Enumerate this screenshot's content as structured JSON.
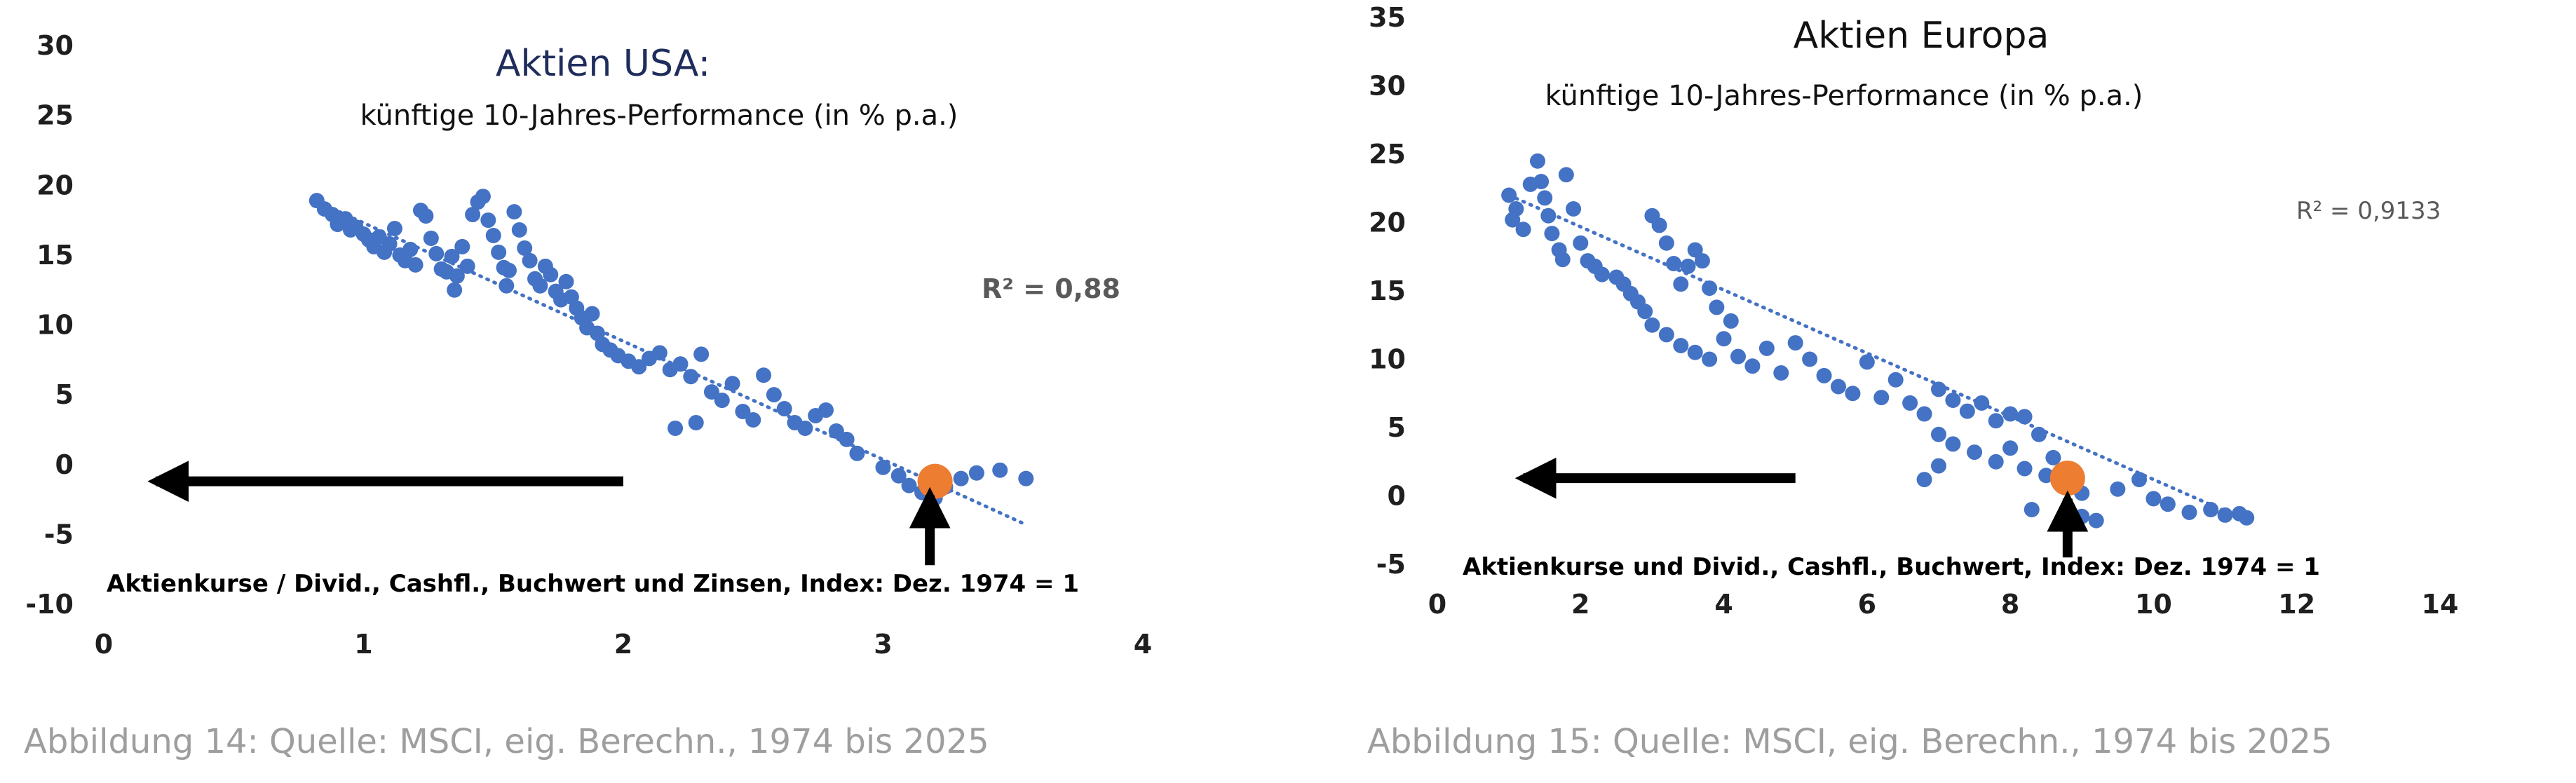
{
  "colors": {
    "points": "#4472C4",
    "trendline": "#4472C4",
    "highlight": "#ED7D31",
    "axis_text": "#1f1f1f",
    "title_usa": "#1f2d5c",
    "r2_usa": "#595959",
    "r2_europe": "#595959",
    "caption": "#9e9e9e",
    "arrow": "#000000"
  },
  "captions": {
    "left": "Abbildung 14: Quelle: MSCI, eig. Berechn., 1974 bis 2025",
    "right": "Abbildung 15: Quelle: MSCI, eig. Berechn., 1974 bis 2025"
  },
  "chart_data": [
    {
      "type": "scatter",
      "title": "Aktien USA:",
      "subtitle": "künftige 10-Jahres-Performance (in % p.a.)",
      "xlabel": "Aktienkurse / Divid., Cashfl., Buchwert und Zinsen, Index: Dez. 1974 = 1",
      "ylabel": "",
      "xlim": [
        0,
        4
      ],
      "ylim": [
        -10,
        30
      ],
      "xticks": [
        0,
        1,
        2,
        3,
        4
      ],
      "yticks": [
        -10,
        -5,
        0,
        5,
        10,
        15,
        20,
        25,
        30
      ],
      "grid": false,
      "r_squared": "R² = 0,88",
      "trendline": {
        "x": [
          0.8,
          3.55
        ],
        "y": [
          19.0,
          -4.3
        ]
      },
      "highlight": {
        "x": 3.2,
        "y": -1.2
      },
      "arrows": [
        {
          "direction": "left",
          "from": [
            2.0,
            -1.2
          ],
          "to": [
            0.2,
            -1.2
          ]
        },
        {
          "direction": "up",
          "from": [
            3.18,
            -7.2
          ],
          "to": [
            3.18,
            -2.2
          ]
        }
      ],
      "series": [
        {
          "values": [
            [
              0.82,
              18.9
            ],
            [
              0.85,
              18.3
            ],
            [
              0.88,
              17.9
            ],
            [
              0.9,
              17.2
            ],
            [
              0.93,
              17.6
            ],
            [
              0.95,
              16.8
            ],
            [
              0.97,
              17.0
            ],
            [
              1.0,
              16.5
            ],
            [
              1.02,
              16.1
            ],
            [
              1.04,
              15.6
            ],
            [
              1.06,
              16.3
            ],
            [
              1.08,
              15.2
            ],
            [
              1.1,
              15.8
            ],
            [
              1.12,
              16.9
            ],
            [
              1.14,
              15.0
            ],
            [
              1.16,
              14.6
            ],
            [
              1.18,
              15.4
            ],
            [
              1.2,
              14.3
            ],
            [
              1.22,
              18.2
            ],
            [
              1.24,
              17.8
            ],
            [
              1.26,
              16.2
            ],
            [
              1.28,
              15.1
            ],
            [
              1.3,
              14.0
            ],
            [
              1.32,
              13.8
            ],
            [
              1.34,
              14.9
            ],
            [
              1.36,
              13.5
            ],
            [
              1.38,
              15.6
            ],
            [
              1.4,
              14.2
            ],
            [
              1.42,
              17.9
            ],
            [
              1.44,
              18.8
            ],
            [
              1.46,
              19.2
            ],
            [
              1.48,
              17.5
            ],
            [
              1.5,
              16.4
            ],
            [
              1.52,
              15.2
            ],
            [
              1.54,
              14.1
            ],
            [
              1.56,
              13.9
            ],
            [
              1.58,
              18.1
            ],
            [
              1.6,
              16.8
            ],
            [
              1.62,
              15.5
            ],
            [
              1.64,
              14.6
            ],
            [
              1.66,
              13.3
            ],
            [
              1.68,
              12.8
            ],
            [
              1.7,
              14.2
            ],
            [
              1.72,
              13.6
            ],
            [
              1.74,
              12.4
            ],
            [
              1.76,
              11.8
            ],
            [
              1.78,
              13.1
            ],
            [
              1.8,
              12.0
            ],
            [
              1.82,
              11.2
            ],
            [
              1.84,
              10.5
            ],
            [
              1.86,
              9.8
            ],
            [
              1.88,
              10.8
            ],
            [
              1.9,
              9.4
            ],
            [
              1.92,
              8.6
            ],
            [
              1.95,
              8.2
            ],
            [
              1.98,
              7.8
            ],
            [
              2.02,
              7.4
            ],
            [
              2.06,
              7.0
            ],
            [
              2.1,
              7.6
            ],
            [
              2.14,
              8.0
            ],
            [
              2.18,
              6.8
            ],
            [
              2.22,
              7.2
            ],
            [
              2.26,
              6.3
            ],
            [
              2.3,
              7.9
            ],
            [
              2.34,
              5.2
            ],
            [
              2.38,
              4.6
            ],
            [
              2.42,
              5.8
            ],
            [
              2.46,
              3.8
            ],
            [
              2.5,
              3.2
            ],
            [
              2.54,
              6.4
            ],
            [
              2.58,
              5.0
            ],
            [
              2.62,
              4.0
            ],
            [
              2.66,
              3.0
            ],
            [
              2.7,
              2.6
            ],
            [
              2.74,
              3.5
            ],
            [
              2.78,
              3.9
            ],
            [
              2.82,
              2.4
            ],
            [
              2.86,
              1.8
            ],
            [
              2.9,
              0.8
            ],
            [
              3.0,
              -0.2
            ],
            [
              3.06,
              -0.8
            ],
            [
              3.1,
              -1.5
            ],
            [
              3.15,
              -2.0
            ],
            [
              3.2,
              -2.4
            ],
            [
              3.24,
              -1.6
            ],
            [
              3.3,
              -1.0
            ],
            [
              3.36,
              -0.6
            ],
            [
              3.45,
              -0.4
            ],
            [
              3.55,
              -1.0
            ],
            [
              2.2,
              2.6
            ],
            [
              2.28,
              3.0
            ],
            [
              1.35,
              12.5
            ],
            [
              1.55,
              12.8
            ]
          ]
        }
      ]
    },
    {
      "type": "scatter",
      "title": "Aktien Europa",
      "subtitle": "künftige 10-Jahres-Performance (in % p.a.)",
      "xlabel": "Aktienkurse und Divid., Cashfl., Buchwert, Index: Dez. 1974 = 1",
      "ylabel": "",
      "xlim": [
        0,
        14
      ],
      "ylim": [
        -5,
        35
      ],
      "xticks": [
        0,
        2,
        4,
        6,
        8,
        10,
        12,
        14
      ],
      "yticks": [
        -5,
        0,
        5,
        10,
        15,
        20,
        25,
        30,
        35
      ],
      "grid": false,
      "r_squared": "R² = 0,9133",
      "trendline": {
        "x": [
          1.0,
          11.3
        ],
        "y": [
          22.0,
          -1.8
        ]
      },
      "highlight": {
        "x": 8.8,
        "y": 1.3
      },
      "arrows": [
        {
          "direction": "left",
          "from": [
            5.0,
            1.3
          ],
          "to": [
            1.2,
            1.3
          ]
        },
        {
          "direction": "up",
          "from": [
            8.8,
            -4.5
          ],
          "to": [
            8.8,
            -0.2
          ]
        }
      ],
      "series": [
        {
          "values": [
            [
              1.0,
              22.0
            ],
            [
              1.05,
              20.2
            ],
            [
              1.1,
              21.0
            ],
            [
              1.2,
              19.5
            ],
            [
              1.3,
              22.8
            ],
            [
              1.4,
              24.5
            ],
            [
              1.45,
              23.0
            ],
            [
              1.5,
              21.8
            ],
            [
              1.55,
              20.5
            ],
            [
              1.6,
              19.2
            ],
            [
              1.7,
              18.0
            ],
            [
              1.75,
              17.3
            ],
            [
              1.8,
              23.5
            ],
            [
              1.9,
              21.0
            ],
            [
              2.0,
              18.5
            ],
            [
              2.1,
              17.2
            ],
            [
              2.2,
              16.8
            ],
            [
              2.3,
              16.2
            ],
            [
              2.5,
              16.0
            ],
            [
              2.6,
              15.5
            ],
            [
              2.7,
              14.8
            ],
            [
              2.8,
              14.2
            ],
            [
              2.9,
              13.5
            ],
            [
              3.0,
              20.5
            ],
            [
              3.1,
              19.8
            ],
            [
              3.2,
              18.5
            ],
            [
              3.3,
              17.0
            ],
            [
              3.4,
              15.5
            ],
            [
              3.5,
              16.8
            ],
            [
              3.6,
              18.0
            ],
            [
              3.7,
              17.2
            ],
            [
              3.8,
              15.2
            ],
            [
              3.9,
              13.8
            ],
            [
              3.0,
              12.5
            ],
            [
              3.2,
              11.8
            ],
            [
              3.4,
              11.0
            ],
            [
              3.6,
              10.5
            ],
            [
              3.8,
              10.0
            ],
            [
              4.0,
              11.5
            ],
            [
              4.1,
              12.8
            ],
            [
              4.2,
              10.2
            ],
            [
              4.4,
              9.5
            ],
            [
              4.6,
              10.8
            ],
            [
              4.8,
              9.0
            ],
            [
              5.0,
              11.2
            ],
            [
              5.2,
              10.0
            ],
            [
              5.4,
              8.8
            ],
            [
              5.6,
              8.0
            ],
            [
              5.8,
              7.5
            ],
            [
              6.0,
              9.8
            ],
            [
              6.2,
              7.2
            ],
            [
              6.4,
              8.5
            ],
            [
              6.6,
              6.8
            ],
            [
              6.8,
              6.0
            ],
            [
              7.0,
              7.8
            ],
            [
              7.2,
              7.0
            ],
            [
              7.4,
              6.2
            ],
            [
              7.6,
              6.8
            ],
            [
              7.8,
              5.5
            ],
            [
              8.0,
              6.0
            ],
            [
              8.2,
              5.8
            ],
            [
              8.4,
              4.5
            ],
            [
              7.0,
              4.5
            ],
            [
              7.2,
              3.8
            ],
            [
              7.5,
              3.2
            ],
            [
              7.8,
              2.5
            ],
            [
              8.0,
              3.5
            ],
            [
              8.2,
              2.0
            ],
            [
              8.5,
              1.5
            ],
            [
              8.6,
              2.8
            ],
            [
              8.8,
              0.8
            ],
            [
              9.0,
              0.2
            ],
            [
              9.2,
              -1.8
            ],
            [
              9.0,
              -1.5
            ],
            [
              8.3,
              -1.0
            ],
            [
              9.5,
              0.5
            ],
            [
              10.0,
              -0.2
            ],
            [
              10.2,
              -0.6
            ],
            [
              10.5,
              -1.2
            ],
            [
              10.8,
              -1.0
            ],
            [
              11.0,
              -1.4
            ],
            [
              11.2,
              -1.3
            ],
            [
              11.3,
              -1.6
            ],
            [
              9.8,
              1.2
            ],
            [
              6.8,
              1.2
            ],
            [
              7.0,
              2.2
            ]
          ]
        }
      ]
    }
  ]
}
